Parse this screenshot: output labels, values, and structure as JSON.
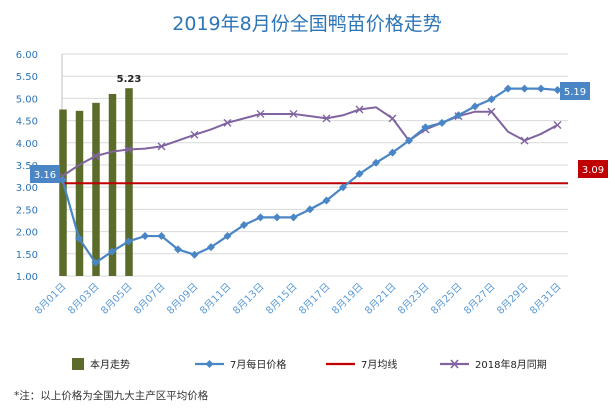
{
  "chart_data": {
    "type": "bar+line",
    "title": "2019年8月份全国鸭苗价格走势",
    "ylim": [
      1.0,
      6.0
    ],
    "y_ticks": [
      "1.00",
      "1.50",
      "2.00",
      "2.50",
      "3.00",
      "3.50",
      "4.00",
      "4.50",
      "5.00",
      "5.50",
      "6.00"
    ],
    "x_tick_labels": [
      "8月01日",
      "8月03日",
      "8月05日",
      "8月07日",
      "8月09日",
      "8月11日",
      "8月13日",
      "8月15日",
      "8月17日",
      "8月19日",
      "8月21日",
      "8月23日",
      "8月25日",
      "8月27日",
      "8月29日",
      "8月31日"
    ],
    "grid": "horizontal",
    "legend_position": "bottom",
    "bars": {
      "name": "本月走势",
      "color": "#5a6b2a",
      "days": [
        1,
        2,
        3,
        4,
        5
      ],
      "values": [
        4.75,
        4.72,
        4.9,
        5.1,
        5.23
      ],
      "label": "5.23"
    },
    "july_daily": {
      "name": "7月每日价格",
      "color": "#4a86c5",
      "days": [
        1,
        2,
        3,
        4,
        5,
        6,
        7,
        8,
        9,
        10,
        11,
        12,
        13,
        14,
        15,
        16,
        17,
        18,
        19,
        20,
        21,
        22,
        23,
        24,
        25,
        26,
        27,
        28,
        29,
        30,
        31
      ],
      "values": [
        3.16,
        1.85,
        1.3,
        1.55,
        1.78,
        1.9,
        1.9,
        1.6,
        1.48,
        1.65,
        1.9,
        2.15,
        2.32,
        2.32,
        2.32,
        2.5,
        2.7,
        3.0,
        3.3,
        3.55,
        3.78,
        4.05,
        4.35,
        4.45,
        4.62,
        4.82,
        4.98,
        5.22,
        5.22,
        5.22,
        5.19
      ],
      "start_label": "3.16",
      "end_label": "5.19"
    },
    "july_avg": {
      "name": "7月均线",
      "color": "#c00000",
      "value": 3.09,
      "label": "3.09"
    },
    "last_year": {
      "name": "2018年8月同期",
      "color": "#8064a2",
      "days": [
        1,
        2,
        3,
        4,
        5,
        6,
        7,
        8,
        9,
        10,
        11,
        12,
        13,
        14,
        15,
        16,
        17,
        18,
        19,
        20,
        21,
        22,
        23,
        24,
        25,
        26,
        27,
        28,
        29,
        30,
        31
      ],
      "values": [
        3.25,
        3.5,
        3.7,
        3.8,
        3.85,
        3.87,
        3.92,
        4.05,
        4.18,
        4.3,
        4.45,
        4.55,
        4.65,
        4.65,
        4.65,
        4.6,
        4.55,
        4.62,
        4.75,
        4.8,
        4.55,
        4.05,
        4.3,
        4.45,
        4.6,
        4.7,
        4.7,
        4.25,
        4.05,
        4.2,
        4.4
      ]
    }
  },
  "legend": {
    "bars": "本月走势",
    "july_daily": "7月每日价格",
    "july_avg": "7月均线",
    "last_year": "2018年8月同期"
  },
  "footnote": "*注：以上价格为全国九大主产区平均价格"
}
